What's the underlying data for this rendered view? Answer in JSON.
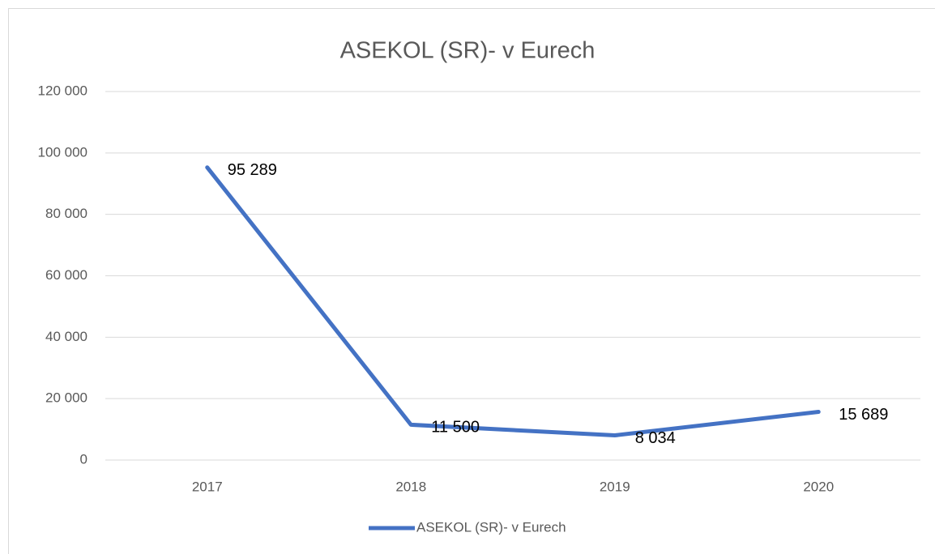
{
  "chart_data": {
    "type": "line",
    "title": "ASEKOL (SR)- v Eurech",
    "categories": [
      "2017",
      "2018",
      "2019",
      "2020"
    ],
    "series": [
      {
        "name": "ASEKOL (SR)- v Eurech",
        "color": "#4472c4",
        "values": [
          95289,
          11500,
          8034,
          15689
        ],
        "value_labels": [
          "95 289",
          "11 500",
          "8 034",
          "15 689"
        ]
      }
    ],
    "ylim": [
      0,
      120000
    ],
    "yticks": [
      0,
      {
        "value": 20000,
        "label": "20 000"
      },
      {
        "value": 40000,
        "label": "40 000"
      },
      {
        "value": 60000,
        "label": "60 000"
      },
      {
        "value": 80000,
        "label": "80 000"
      },
      {
        "value": 100000,
        "label": "100 000"
      },
      {
        "value": 120000,
        "label": "120 000"
      }
    ],
    "grid": true,
    "legend": "bottom"
  }
}
